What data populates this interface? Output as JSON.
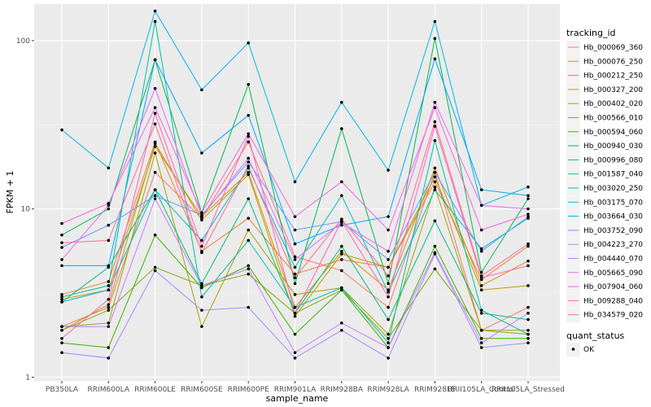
{
  "chart_data": {
    "type": "line",
    "y_scale": "log10",
    "ylim": [
      1,
      150
    ],
    "yticks": [
      {
        "value": 1,
        "label": "1"
      },
      {
        "value": 10,
        "label": "10"
      },
      {
        "value": 100,
        "label": "100"
      }
    ],
    "xlabel": "sample_name",
    "ylabel": "FPKM + 1",
    "categories": [
      "PB350LA",
      "RRIM600LA",
      "RRIM600LE",
      "RRIM600SE",
      "RRIM600PE",
      "RRIM901LA",
      "RRIM928BA",
      "RRIM928LA",
      "RRIM928LE",
      "RRII105LA_Control",
      "RRII105LA_Stressed"
    ],
    "grid": true,
    "legend": {
      "title": "tracking_id",
      "position": "right",
      "shape_title": "quant_status",
      "shape_entries": [
        "OK"
      ]
    },
    "series": [
      {
        "name": "Hb_000069_360",
        "color": "#F8766D",
        "values": [
          2.0,
          2.6,
          16.5,
          8.8,
          25.0,
          5.2,
          4.3,
          2.6,
          16.5,
          1.9,
          2.6
        ]
      },
      {
        "name": "Hb_000076_250",
        "color": "#EA8331",
        "values": [
          3.1,
          3.7,
          25.0,
          5.6,
          8.8,
          4.1,
          5.0,
          4.5,
          14.5,
          3.8,
          6.0
        ]
      },
      {
        "name": "Hb_000212_250",
        "color": "#D89000",
        "values": [
          2.9,
          3.3,
          23.5,
          9.0,
          16.5,
          2.6,
          5.6,
          3.3,
          17.5,
          3.5,
          4.9
        ]
      },
      {
        "name": "Hb_000327_200",
        "color": "#C09B00",
        "values": [
          1.9,
          2.7,
          24.5,
          8.6,
          16.0,
          2.3,
          5.4,
          4.5,
          15.5,
          3.3,
          3.5
        ]
      },
      {
        "name": "Hb_000402_020",
        "color": "#A3A500",
        "values": [
          2.0,
          2.1,
          21.5,
          2.0,
          7.5,
          3.1,
          3.4,
          1.8,
          13.5,
          1.9,
          1.9
        ]
      },
      {
        "name": "Hb_000566_010",
        "color": "#7CAE00",
        "values": [
          1.9,
          2.5,
          4.5,
          3.5,
          4.1,
          2.4,
          3.3,
          1.7,
          4.4,
          1.9,
          1.8
        ]
      },
      {
        "name": "Hb_000594_060",
        "color": "#39B600",
        "values": [
          1.6,
          1.5,
          7.0,
          3.4,
          4.6,
          1.8,
          3.3,
          1.5,
          6.0,
          1.7,
          1.7
        ]
      },
      {
        "name": "Hb_000940_030",
        "color": "#00BB4E",
        "values": [
          7.0,
          10.0,
          77.0,
          9.5,
          55.0,
          3.6,
          30.0,
          3.6,
          103.0,
          4.2,
          11.5
        ]
      },
      {
        "name": "Hb_000996_080",
        "color": "#00BF7D",
        "values": [
          2.8,
          4.5,
          13.0,
          3.6,
          11.5,
          2.4,
          6.0,
          2.2,
          8.5,
          2.4,
          2.2
        ]
      },
      {
        "name": "Hb_001587_040",
        "color": "#00C1A3",
        "values": [
          3.0,
          3.5,
          130.0,
          3.0,
          6.5,
          2.6,
          3.4,
          1.6,
          25.5,
          2.5,
          1.8
        ]
      },
      {
        "name": "Hb_003020_250",
        "color": "#00BFC4",
        "values": [
          2.8,
          3.3,
          13.0,
          6.5,
          17.5,
          4.5,
          12.0,
          3.2,
          13.0,
          5.8,
          8.8
        ]
      },
      {
        "name": "Hb_003175_070",
        "color": "#00B8E7",
        "values": [
          29.5,
          17.5,
          150.0,
          51.0,
          97.0,
          14.5,
          43.0,
          17.0,
          130.0,
          10.5,
          13.5
        ]
      },
      {
        "name": "Hb_003664_030",
        "color": "#00A9FF",
        "values": [
          4.6,
          4.6,
          77.0,
          21.5,
          36.0,
          6.2,
          8.0,
          9.0,
          78.0,
          13.0,
          12.0
        ]
      },
      {
        "name": "Hb_003752_090",
        "color": "#619CFF",
        "values": [
          5.9,
          8.0,
          12.0,
          9.2,
          19.0,
          7.5,
          8.4,
          5.0,
          16.5,
          5.6,
          9.0
        ]
      },
      {
        "name": "Hb_004223_270",
        "color": "#9F8CFF",
        "values": [
          1.4,
          1.3,
          4.3,
          2.5,
          2.6,
          1.3,
          1.9,
          1.3,
          5.4,
          1.5,
          1.6
        ]
      },
      {
        "name": "Hb_004440_070",
        "color": "#C77CFF",
        "values": [
          2.0,
          2.0,
          11.5,
          3.5,
          4.4,
          1.4,
          2.1,
          1.5,
          5.5,
          1.6,
          2.4
        ]
      },
      {
        "name": "Hb_005665_090",
        "color": "#E76BF3",
        "values": [
          5.0,
          10.5,
          52.0,
          9.0,
          20.0,
          5.0,
          8.3,
          5.6,
          43.0,
          10.5,
          10.0
        ]
      },
      {
        "name": "Hb_007904_060",
        "color": "#F763E0",
        "values": [
          8.2,
          10.8,
          40.0,
          9.5,
          28.0,
          9.0,
          14.5,
          7.5,
          40.0,
          7.5,
          9.3
        ]
      },
      {
        "name": "Hb_009288_040",
        "color": "#FF61C3",
        "values": [
          1.7,
          2.9,
          37.0,
          6.0,
          27.0,
          2.4,
          8.5,
          3.0,
          31.0,
          3.9,
          4.6
        ]
      },
      {
        "name": "Hb_034579_020",
        "color": "#FF6C91",
        "values": [
          6.3,
          6.5,
          32.0,
          5.5,
          18.0,
          3.9,
          8.7,
          4.0,
          33.0,
          4.0,
          6.2
        ]
      }
    ]
  }
}
